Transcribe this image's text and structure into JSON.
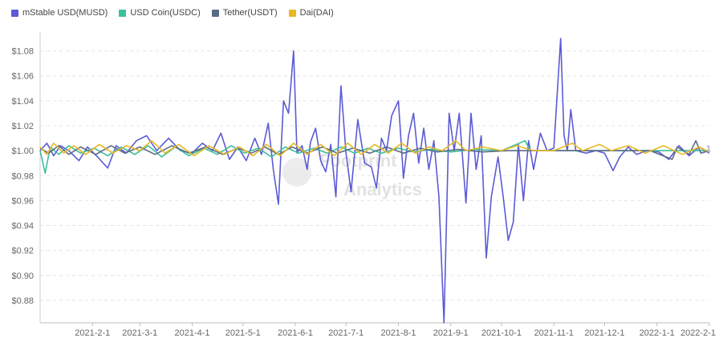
{
  "chart_data": {
    "type": "line",
    "legend_position": "top-left",
    "grid": "horizontal-dashed",
    "ylim": [
      0.862,
      1.09
    ],
    "yticks": [
      0.88,
      0.9,
      0.92,
      0.94,
      0.96,
      0.98,
      1.0,
      1.02,
      1.04,
      1.06,
      1.08
    ],
    "ytick_labels": [
      "$0.88",
      "$0.90",
      "$0.92",
      "$0.94",
      "$0.96",
      "$0.98",
      "$1.00",
      "$1.02",
      "$1.04",
      "$1.06",
      "$1.08"
    ],
    "xlim": [
      "2021-01-01",
      "2022-02-01"
    ],
    "xticks": [
      "2021-02-01",
      "2021-03-01",
      "2021-04-01",
      "2021-05-01",
      "2021-06-01",
      "2021-07-01",
      "2021-08-01",
      "2021-09-01",
      "2021-10-01",
      "2021-11-01",
      "2021-12-01",
      "2022-01-01",
      "2022-02-01"
    ],
    "xtick_labels": [
      "2021-2-1",
      "2021-3-1",
      "2021-4-1",
      "2021-5-1",
      "2021-6-1",
      "2021-7-1",
      "2021-8-1",
      "2021-9-1",
      "2021-10-1",
      "2021-11-1",
      "2021-12-1",
      "2022-1-1",
      "2022-2-1"
    ],
    "end_label": "1",
    "watermark": "Footprint Analytics",
    "series": [
      {
        "name": "mStable USD(MUSD)",
        "color": "#5b5bd6",
        "points": [
          [
            "2021-01-01",
            1.0
          ],
          [
            "2021-01-05",
            1.006
          ],
          [
            "2021-01-09",
            0.996
          ],
          [
            "2021-01-13",
            1.004
          ],
          [
            "2021-01-18",
            1.0
          ],
          [
            "2021-01-24",
            0.992
          ],
          [
            "2021-01-29",
            1.003
          ],
          [
            "2021-02-04",
            0.995
          ],
          [
            "2021-02-10",
            0.986
          ],
          [
            "2021-02-15",
            1.004
          ],
          [
            "2021-02-21",
            0.998
          ],
          [
            "2021-02-27",
            1.008
          ],
          [
            "2021-03-05",
            1.012
          ],
          [
            "2021-03-11",
            1.0
          ],
          [
            "2021-03-18",
            1.01
          ],
          [
            "2021-03-25",
            1.0
          ],
          [
            "2021-04-01",
            0.998
          ],
          [
            "2021-04-07",
            1.006
          ],
          [
            "2021-04-13",
            1.0
          ],
          [
            "2021-04-18",
            1.014
          ],
          [
            "2021-04-23",
            0.993
          ],
          [
            "2021-04-28",
            1.003
          ],
          [
            "2021-05-03",
            0.992
          ],
          [
            "2021-05-08",
            1.01
          ],
          [
            "2021-05-12",
            0.997
          ],
          [
            "2021-05-16",
            1.022
          ],
          [
            "2021-05-19",
            0.985
          ],
          [
            "2021-05-22",
            0.957
          ],
          [
            "2021-05-25",
            1.04
          ],
          [
            "2021-05-28",
            1.03
          ],
          [
            "2021-05-31",
            1.08
          ],
          [
            "2021-06-02",
            0.998
          ],
          [
            "2021-06-05",
            1.004
          ],
          [
            "2021-06-08",
            0.985
          ],
          [
            "2021-06-10",
            1.007
          ],
          [
            "2021-06-13",
            1.018
          ],
          [
            "2021-06-16",
            0.992
          ],
          [
            "2021-06-19",
            0.983
          ],
          [
            "2021-06-22",
            1.005
          ],
          [
            "2021-06-25",
            0.963
          ],
          [
            "2021-06-28",
            1.052
          ],
          [
            "2021-07-01",
            0.998
          ],
          [
            "2021-07-04",
            0.967
          ],
          [
            "2021-07-08",
            1.025
          ],
          [
            "2021-07-12",
            0.99
          ],
          [
            "2021-07-16",
            0.987
          ],
          [
            "2021-07-19",
            0.97
          ],
          [
            "2021-07-22",
            1.01
          ],
          [
            "2021-07-25",
            1.0
          ],
          [
            "2021-07-28",
            1.028
          ],
          [
            "2021-08-01",
            1.04
          ],
          [
            "2021-08-04",
            0.978
          ],
          [
            "2021-08-07",
            1.012
          ],
          [
            "2021-08-10",
            1.03
          ],
          [
            "2021-08-13",
            0.99
          ],
          [
            "2021-08-16",
            1.018
          ],
          [
            "2021-08-19",
            0.985
          ],
          [
            "2021-08-22",
            1.008
          ],
          [
            "2021-08-25",
            0.963
          ],
          [
            "2021-08-28",
            0.862
          ],
          [
            "2021-08-31",
            1.03
          ],
          [
            "2021-09-03",
            1.0
          ],
          [
            "2021-09-06",
            1.03
          ],
          [
            "2021-09-10",
            0.958
          ],
          [
            "2021-09-13",
            1.03
          ],
          [
            "2021-09-16",
            0.985
          ],
          [
            "2021-09-19",
            1.012
          ],
          [
            "2021-09-22",
            0.914
          ],
          [
            "2021-09-25",
            0.963
          ],
          [
            "2021-09-29",
            0.995
          ],
          [
            "2021-10-02",
            0.963
          ],
          [
            "2021-10-05",
            0.928
          ],
          [
            "2021-10-08",
            0.943
          ],
          [
            "2021-10-11",
            1.005
          ],
          [
            "2021-10-14",
            0.96
          ],
          [
            "2021-10-17",
            1.008
          ],
          [
            "2021-10-20",
            0.985
          ],
          [
            "2021-10-24",
            1.014
          ],
          [
            "2021-10-28",
            1.0
          ],
          [
            "2021-11-01",
            1.002
          ],
          [
            "2021-11-05",
            1.09
          ],
          [
            "2021-11-07",
            1.012
          ],
          [
            "2021-11-09",
            1.0
          ],
          [
            "2021-11-11",
            1.033
          ],
          [
            "2021-11-14",
            1.0
          ],
          [
            "2021-11-20",
            0.998
          ],
          [
            "2021-11-26",
            1.0
          ],
          [
            "2021-12-01",
            0.998
          ],
          [
            "2021-12-06",
            0.984
          ],
          [
            "2021-12-10",
            0.995
          ],
          [
            "2021-12-15",
            1.003
          ],
          [
            "2021-12-20",
            0.997
          ],
          [
            "2021-12-26",
            1.0
          ],
          [
            "2022-01-02",
            0.999
          ],
          [
            "2022-01-08",
            0.993
          ],
          [
            "2022-01-14",
            1.004
          ],
          [
            "2022-01-20",
            0.996
          ],
          [
            "2022-01-26",
            1.003
          ],
          [
            "2022-02-01",
            0.998
          ]
        ]
      },
      {
        "name": "USD Coin(USDC)",
        "color": "#3cbf9c",
        "points": [
          [
            "2021-01-01",
            1.0
          ],
          [
            "2021-01-04",
            0.982
          ],
          [
            "2021-01-07",
            1.003
          ],
          [
            "2021-01-12",
            0.997
          ],
          [
            "2021-01-18",
            1.004
          ],
          [
            "2021-01-25",
            0.998
          ],
          [
            "2021-02-02",
            1.002
          ],
          [
            "2021-02-10",
            0.996
          ],
          [
            "2021-02-18",
            1.003
          ],
          [
            "2021-02-26",
            0.997
          ],
          [
            "2021-03-06",
            1.004
          ],
          [
            "2021-03-14",
            0.995
          ],
          [
            "2021-03-22",
            1.003
          ],
          [
            "2021-03-30",
            0.996
          ],
          [
            "2021-04-08",
            1.002
          ],
          [
            "2021-04-16",
            0.997
          ],
          [
            "2021-04-24",
            1.004
          ],
          [
            "2021-05-02",
            0.998
          ],
          [
            "2021-05-10",
            1.002
          ],
          [
            "2021-05-18",
            0.995
          ],
          [
            "2021-05-26",
            1.003
          ],
          [
            "2021-06-03",
            0.998
          ],
          [
            "2021-06-12",
            1.002
          ],
          [
            "2021-06-20",
            0.998
          ],
          [
            "2021-06-28",
            1.003
          ],
          [
            "2021-07-06",
            0.998
          ],
          [
            "2021-07-14",
            1.002
          ],
          [
            "2021-07-22",
            0.998
          ],
          [
            "2021-08-01",
            1.002
          ],
          [
            "2021-08-10",
            0.999
          ],
          [
            "2021-08-20",
            1.001
          ],
          [
            "2021-09-01",
            0.999
          ],
          [
            "2021-09-15",
            1.001
          ],
          [
            "2021-10-01",
            1.0
          ],
          [
            "2021-10-15",
            1.008
          ],
          [
            "2021-10-18",
            1.0
          ],
          [
            "2021-11-01",
            1.0
          ],
          [
            "2021-12-01",
            1.0
          ],
          [
            "2022-01-01",
            1.0
          ],
          [
            "2022-02-01",
            1.0
          ]
        ]
      },
      {
        "name": "Tether(USDT)",
        "color": "#5c6b86",
        "points": [
          [
            "2021-01-01",
            1.002
          ],
          [
            "2021-01-06",
            0.998
          ],
          [
            "2021-01-12",
            1.004
          ],
          [
            "2021-01-18",
            0.997
          ],
          [
            "2021-01-25",
            1.003
          ],
          [
            "2021-02-03",
            0.997
          ],
          [
            "2021-02-12",
            1.004
          ],
          [
            "2021-02-20",
            0.998
          ],
          [
            "2021-03-01",
            1.003
          ],
          [
            "2021-03-10",
            0.997
          ],
          [
            "2021-03-20",
            1.004
          ],
          [
            "2021-03-30",
            0.998
          ],
          [
            "2021-04-09",
            1.003
          ],
          [
            "2021-04-19",
            0.997
          ],
          [
            "2021-04-28",
            1.002
          ],
          [
            "2021-05-06",
            0.998
          ],
          [
            "2021-05-14",
            1.003
          ],
          [
            "2021-05-22",
            0.997
          ],
          [
            "2021-05-30",
            1.003
          ],
          [
            "2021-06-08",
            0.998
          ],
          [
            "2021-06-17",
            1.003
          ],
          [
            "2021-06-26",
            0.998
          ],
          [
            "2021-07-05",
            1.002
          ],
          [
            "2021-07-15",
            0.998
          ],
          [
            "2021-07-25",
            1.003
          ],
          [
            "2021-08-04",
            0.998
          ],
          [
            "2021-08-14",
            1.002
          ],
          [
            "2021-08-24",
            0.999
          ],
          [
            "2021-09-05",
            1.001
          ],
          [
            "2021-09-20",
            0.999
          ],
          [
            "2021-10-05",
            1.0
          ],
          [
            "2021-10-20",
            1.0
          ],
          [
            "2021-11-05",
            1.0
          ],
          [
            "2021-11-25",
            1.0
          ],
          [
            "2021-12-10",
            1.0
          ],
          [
            "2021-12-28",
            1.0
          ],
          [
            "2022-01-10",
            0.993
          ],
          [
            "2022-01-13",
            1.003
          ],
          [
            "2022-01-20",
            0.997
          ],
          [
            "2022-01-24",
            1.008
          ],
          [
            "2022-01-27",
            0.998
          ],
          [
            "2022-02-01",
            1.0
          ]
        ]
      },
      {
        "name": "Dai(DAI)",
        "color": "#e8b923",
        "points": [
          [
            "2021-01-01",
            1.003
          ],
          [
            "2021-01-05",
            0.997
          ],
          [
            "2021-01-09",
            1.006
          ],
          [
            "2021-01-15",
            0.998
          ],
          [
            "2021-01-21",
            1.004
          ],
          [
            "2021-01-28",
            0.997
          ],
          [
            "2021-02-05",
            1.005
          ],
          [
            "2021-02-13",
            0.998
          ],
          [
            "2021-02-21",
            1.004
          ],
          [
            "2021-03-01",
            1.0
          ],
          [
            "2021-03-08",
            1.008
          ],
          [
            "2021-03-16",
            0.998
          ],
          [
            "2021-03-24",
            1.005
          ],
          [
            "2021-04-02",
            0.996
          ],
          [
            "2021-04-11",
            1.004
          ],
          [
            "2021-04-20",
            0.997
          ],
          [
            "2021-04-29",
            1.003
          ],
          [
            "2021-05-07",
            0.996
          ],
          [
            "2021-05-15",
            1.005
          ],
          [
            "2021-05-23",
            0.996
          ],
          [
            "2021-05-31",
            1.006
          ],
          [
            "2021-06-08",
            0.997
          ],
          [
            "2021-06-16",
            1.005
          ],
          [
            "2021-06-24",
            0.996
          ],
          [
            "2021-07-02",
            1.006
          ],
          [
            "2021-07-10",
            0.997
          ],
          [
            "2021-07-18",
            1.005
          ],
          [
            "2021-07-26",
            0.998
          ],
          [
            "2021-08-03",
            1.006
          ],
          [
            "2021-08-11",
            0.998
          ],
          [
            "2021-08-19",
            1.003
          ],
          [
            "2021-08-27",
            1.0
          ],
          [
            "2021-09-04",
            1.008
          ],
          [
            "2021-09-10",
            1.0
          ],
          [
            "2021-09-20",
            1.003
          ],
          [
            "2021-10-01",
            1.0
          ],
          [
            "2021-10-10",
            1.004
          ],
          [
            "2021-10-20",
            1.0
          ],
          [
            "2021-11-01",
            1.0
          ],
          [
            "2021-11-12",
            1.006
          ],
          [
            "2021-11-18",
            1.0
          ],
          [
            "2021-11-28",
            1.005
          ],
          [
            "2021-12-05",
            1.0
          ],
          [
            "2021-12-15",
            1.004
          ],
          [
            "2021-12-25",
            0.998
          ],
          [
            "2022-01-05",
            1.004
          ],
          [
            "2022-01-16",
            0.997
          ],
          [
            "2022-01-26",
            1.003
          ],
          [
            "2022-02-01",
            0.999
          ]
        ]
      }
    ]
  }
}
